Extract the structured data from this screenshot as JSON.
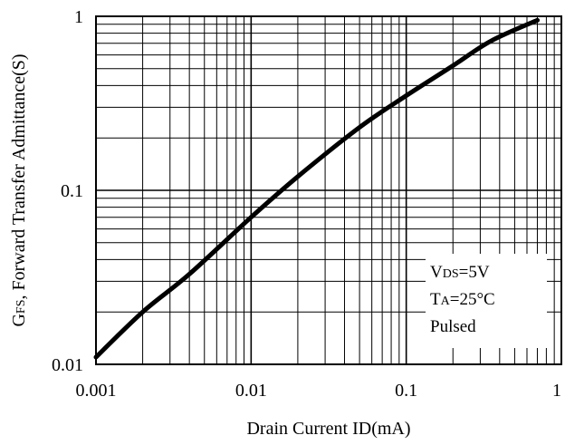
{
  "chart_data": {
    "type": "line",
    "x_scale": "log",
    "y_scale": "log",
    "xlim": [
      0.001,
      1
    ],
    "ylim": [
      0.01,
      1
    ],
    "x_ticks": [
      "0.001",
      "0.01",
      "0.1",
      "1"
    ],
    "y_ticks": [
      "0.01",
      "0.1",
      "1"
    ],
    "xlabel": "Drain Current ID(mA)",
    "ylabel": "GFS, Forward Transfer Admittance(S)",
    "grid": true,
    "legend_position": "bottom-right",
    "conditions": [
      {
        "main1": "V",
        "sub": "DS",
        "main2": "=5V"
      },
      {
        "main1": "T",
        "sub": "A",
        "main2": "=25°C"
      },
      {
        "main1": "Pulsed",
        "sub": "",
        "main2": ""
      }
    ],
    "series": [
      {
        "x": [
          0.001,
          0.002,
          0.004,
          0.01,
          0.02,
          0.05,
          0.1,
          0.2,
          0.35,
          0.7
        ],
        "y": [
          0.011,
          0.02,
          0.033,
          0.07,
          0.12,
          0.23,
          0.35,
          0.52,
          0.72,
          0.95
        ]
      }
    ]
  },
  "colors": {
    "line": "#000000",
    "grid": "#000000",
    "background": "#ffffff"
  }
}
